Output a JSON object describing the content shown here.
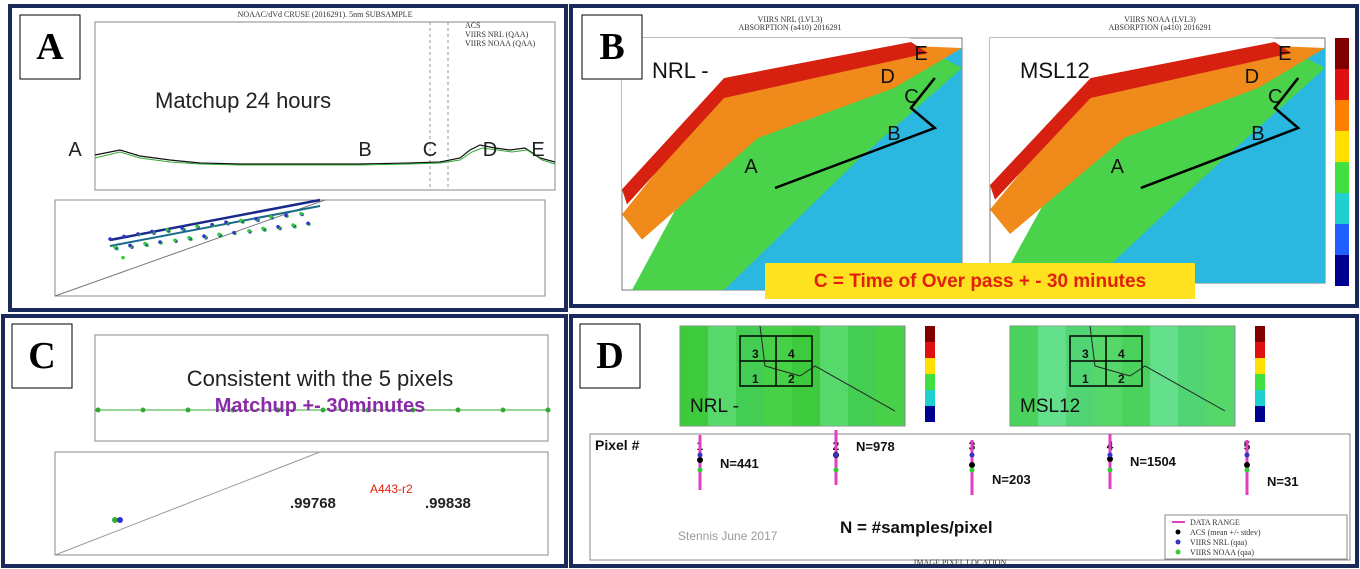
{
  "panels": [
    {
      "label": "A",
      "title": "NOAAC/dVd CRUSE (2016291). 5nm SUBSAMPLE",
      "annotation": "Matchup 24 hours",
      "points": [
        "A",
        "B",
        "C",
        "D",
        "E"
      ],
      "legend": [
        "ACS",
        "VIIRS NRL (QAA)",
        "VIIRS NOAA (QAA)"
      ]
    },
    {
      "label": "B",
      "maps": [
        {
          "title": "VIIRS NRL (LVL3)",
          "subtitle": "ABSORPTION (a410) 2016291",
          "name": "NRL -"
        },
        {
          "title": "VIIRS NOAA (LVL3)",
          "subtitle": "ABSORPTION (a410) 2016291",
          "name": "MSL12"
        }
      ],
      "points": [
        "A",
        "B",
        "C",
        "D",
        "E"
      ],
      "banner": "C =  Time of Over pass  + - 30 minutes"
    },
    {
      "label": "C",
      "annotation": "Consistent with the 5 pixels",
      "subannotation": "Matchup  +- 30minutes",
      "stats": [
        ".99768",
        ".99838"
      ],
      "tag": "A443-r2"
    },
    {
      "label": "D",
      "maps": [
        "NRL -",
        "MSL12"
      ],
      "pixel_heading": "Pixel #",
      "pixels": [
        {
          "id": "1",
          "n": "N=441"
        },
        {
          "id": "2",
          "n": "N=978"
        },
        {
          "id": "3",
          "n": "N=203"
        },
        {
          "id": "4",
          "n": "N=1504"
        },
        {
          "id": "5",
          "n": "N=31"
        }
      ],
      "note": "N = #samples/pixel",
      "watermark": "Stennis June 2017",
      "x_label": "IMAGE PIXEL LOCATION",
      "legend": [
        "DATA RANGE",
        "ACS (mean +/- stdev)",
        "VIIRS NRL (qaa)",
        "VIIRS NOAA (qaa)"
      ]
    }
  ]
}
